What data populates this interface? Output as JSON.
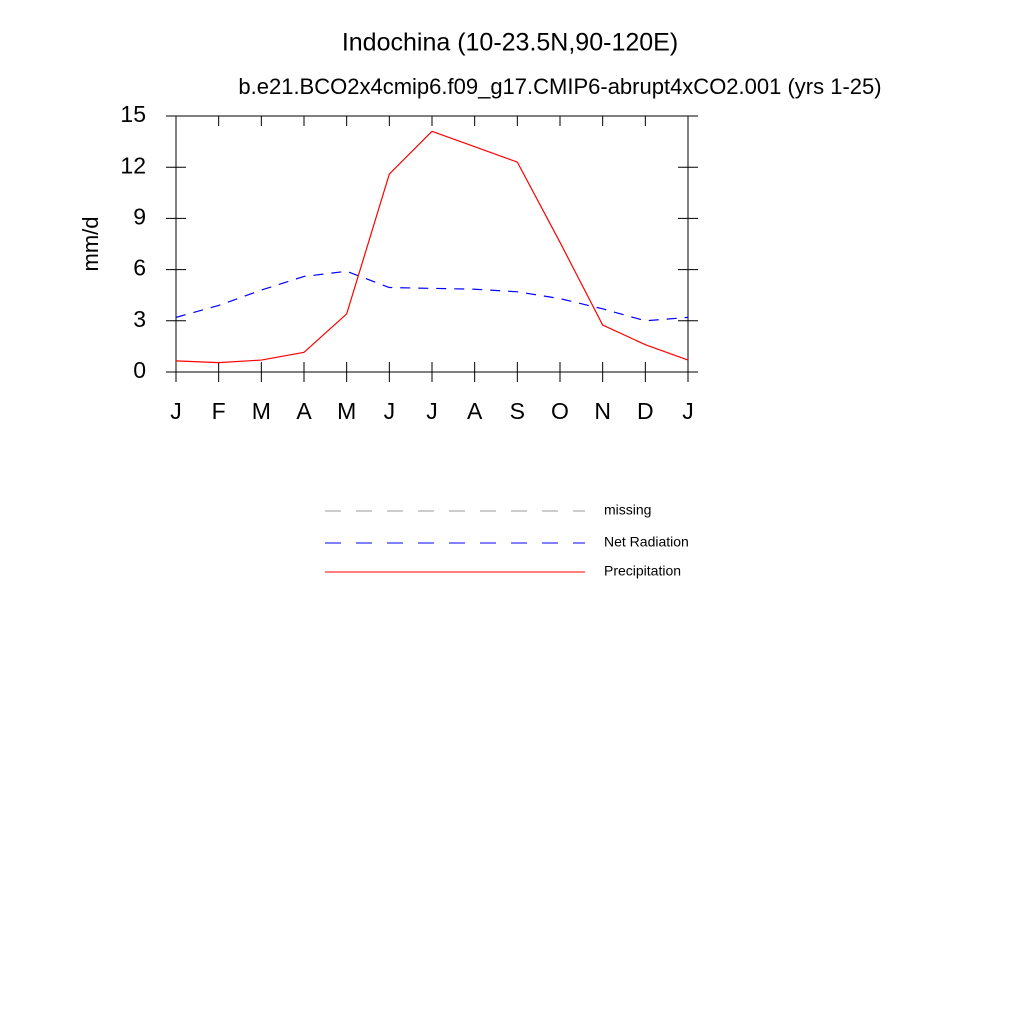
{
  "chart_data": {
    "type": "line",
    "title": "Indochina (10-23.5N,90-120E)",
    "subtitle": "b.e21.BCO2x4cmip6.f09_g17.CMIP6-abrupt4xCO2.001 (yrs 1-25)",
    "y_label": "mm/d",
    "categories": [
      "J",
      "F",
      "M",
      "A",
      "M",
      "J",
      "J",
      "A",
      "S",
      "O",
      "N",
      "D",
      "J"
    ],
    "series": [
      {
        "name": "missing",
        "color": "#999999",
        "dash": true,
        "values": [
          null,
          null,
          null,
          null,
          null,
          null,
          null,
          null,
          null,
          null,
          null,
          null,
          null
        ]
      },
      {
        "name": "Net Radiation",
        "color": "#0000ff",
        "dash": true,
        "values": [
          3.2,
          3.9,
          4.8,
          5.6,
          5.9,
          4.95,
          4.9,
          4.85,
          4.7,
          4.3,
          3.7,
          3.0,
          3.2
        ]
      },
      {
        "name": "Precipitation",
        "color": "#ff0000",
        "dash": false,
        "values": [
          0.65,
          0.55,
          0.7,
          1.15,
          3.4,
          11.6,
          14.1,
          13.2,
          12.3,
          7.6,
          2.75,
          1.6,
          0.7
        ]
      }
    ],
    "ylim": [
      0,
      15
    ],
    "yticks": [
      0,
      3,
      6,
      9,
      12,
      15
    ],
    "grid": false
  }
}
